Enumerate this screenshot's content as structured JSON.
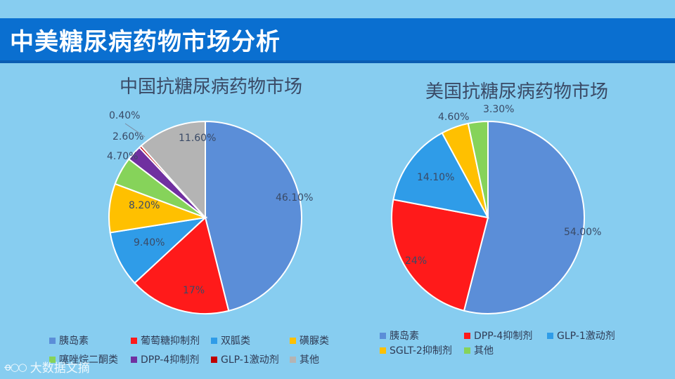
{
  "header": {
    "title": "中美糖尿病药物市场分析"
  },
  "colors": {
    "background": "#87cdf0",
    "banner": "#0a6fd0",
    "slice_blue": "#5b8ed8",
    "slice_red": "#ff1a1a",
    "slice_lightblue": "#2f9ce8",
    "slice_yellow": "#ffc000",
    "slice_green": "#86d35a",
    "slice_purple": "#7030a0",
    "slice_darkred": "#c00000",
    "slice_gray": "#b4b4b4"
  },
  "chart_data": [
    {
      "type": "pie",
      "title": "中国抗糖尿病药物市场",
      "labels": [
        "胰岛素",
        "葡萄糖抑制剂",
        "双胍类",
        "磺脲类",
        "噻唑烷二酮类",
        "DPP-4抑制剂",
        "GLP-1激动剂",
        "其他"
      ],
      "values": [
        46.1,
        17,
        9.4,
        8.2,
        4.7,
        2.6,
        0.4,
        11.6
      ],
      "data_labels": [
        "46.10%",
        "17%",
        "9.40%",
        "8.20%",
        "4.70%",
        "2.60%",
        "0.40%",
        "11.60%"
      ],
      "colors": [
        "#5b8ed8",
        "#ff1a1a",
        "#2f9ce8",
        "#ffc000",
        "#86d35a",
        "#7030a0",
        "#c00000",
        "#b4b4b4"
      ],
      "legend_position": "bottom"
    },
    {
      "type": "pie",
      "title": "美国抗糖尿病药物市场",
      "labels": [
        "胰岛素",
        "DPP-4抑制剂",
        "GLP-1激动剂",
        "SGLT-2抑制剂",
        "其他"
      ],
      "values": [
        54,
        24,
        14.1,
        4.6,
        3.3
      ],
      "data_labels": [
        "54.00%",
        "24%",
        "14.10%",
        "4.60%",
        "3.30%"
      ],
      "colors": [
        "#5b8ed8",
        "#ff1a1a",
        "#2f9ce8",
        "#ffc000",
        "#86d35a"
      ],
      "legend_position": "bottom"
    }
  ],
  "watermark": {
    "text": "大数据文摘"
  }
}
